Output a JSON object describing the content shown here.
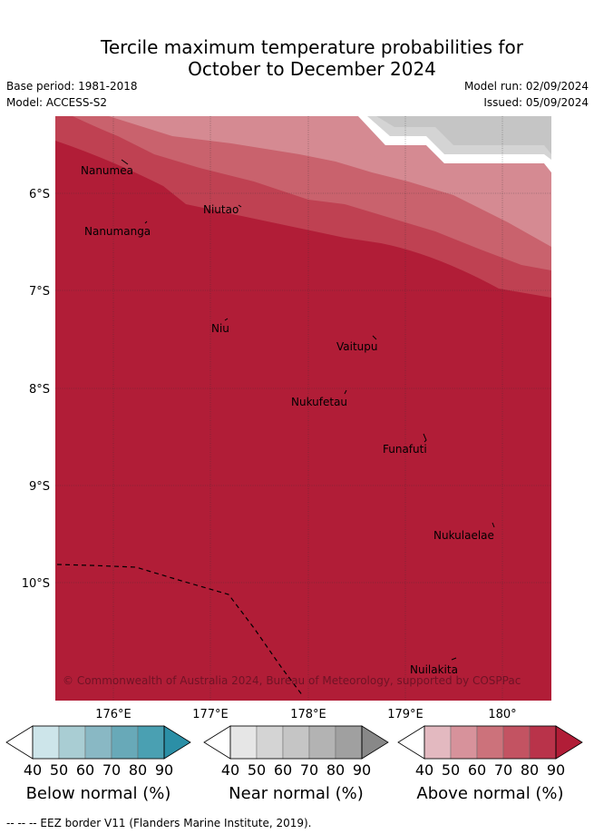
{
  "header": {
    "title_line1": "Tercile maximum temperature probabilities for",
    "title_line2": "October to December 2024",
    "base_period": "Base period: 1981-2018",
    "model": "Model: ACCESS-S2",
    "model_run": "Model run: 02/09/2024",
    "issued": "Issued: 05/09/2024"
  },
  "map": {
    "lon_ticks": [
      "176°E",
      "177°E",
      "178°E",
      "179°E",
      "180°"
    ],
    "lat_ticks": [
      "6°S",
      "7°S",
      "8°S",
      "9°S",
      "10°S"
    ],
    "islands": [
      {
        "name": "Nanumea",
        "label": "Nanumea"
      },
      {
        "name": "Nanumanga",
        "label": "Nanumanga"
      },
      {
        "name": "Niutao",
        "label": "Niutao"
      },
      {
        "name": "Nui",
        "label": "Niu"
      },
      {
        "name": "Vaitupu",
        "label": "Vaitupu"
      },
      {
        "name": "Nukufetau",
        "label": "Nukufetau"
      },
      {
        "name": "Funafuti",
        "label": "Funafuti"
      },
      {
        "name": "Nukulaelae",
        "label": "Nukulaelae"
      },
      {
        "name": "Niulakita",
        "label": "Nuilakita"
      }
    ],
    "copyright": "© Commonwealth of Australia 2024, Bureau of Meteorology, supported by COSPPac",
    "colors": {
      "above_90": "#b11d37",
      "above_80": "#bf4152",
      "above_70": "#c9626d",
      "above_60": "#d58a92",
      "near_normal": "#d4d4d4",
      "near_normal_dark": "#c5c5c5",
      "grid": "#333333"
    }
  },
  "colorbars": [
    {
      "label": "Below normal (%)",
      "ticks": [
        "40",
        "50",
        "60",
        "70",
        "80",
        "90"
      ],
      "colors": [
        "#ffffff",
        "#cde5ea",
        "#a9cdd3",
        "#89b8c4",
        "#68a9b8",
        "#4aa0b2",
        "#2b8fa6"
      ]
    },
    {
      "label": "Near normal (%)",
      "ticks": [
        "40",
        "50",
        "60",
        "70",
        "80",
        "90"
      ],
      "colors": [
        "#ffffff",
        "#e6e6e6",
        "#d4d4d4",
        "#c5c5c5",
        "#b3b3b3",
        "#a0a0a0",
        "#888888"
      ]
    },
    {
      "label": "Above normal (%)",
      "ticks": [
        "40",
        "50",
        "60",
        "70",
        "80",
        "90"
      ],
      "colors": [
        "#ffffff",
        "#e3b9c0",
        "#d7929b",
        "#cc727b",
        "#c35362",
        "#b9334a",
        "#b11d37"
      ]
    }
  ],
  "footnote": "-- -- -- EEZ border V11 (Flanders Marine Institute, 2019)."
}
